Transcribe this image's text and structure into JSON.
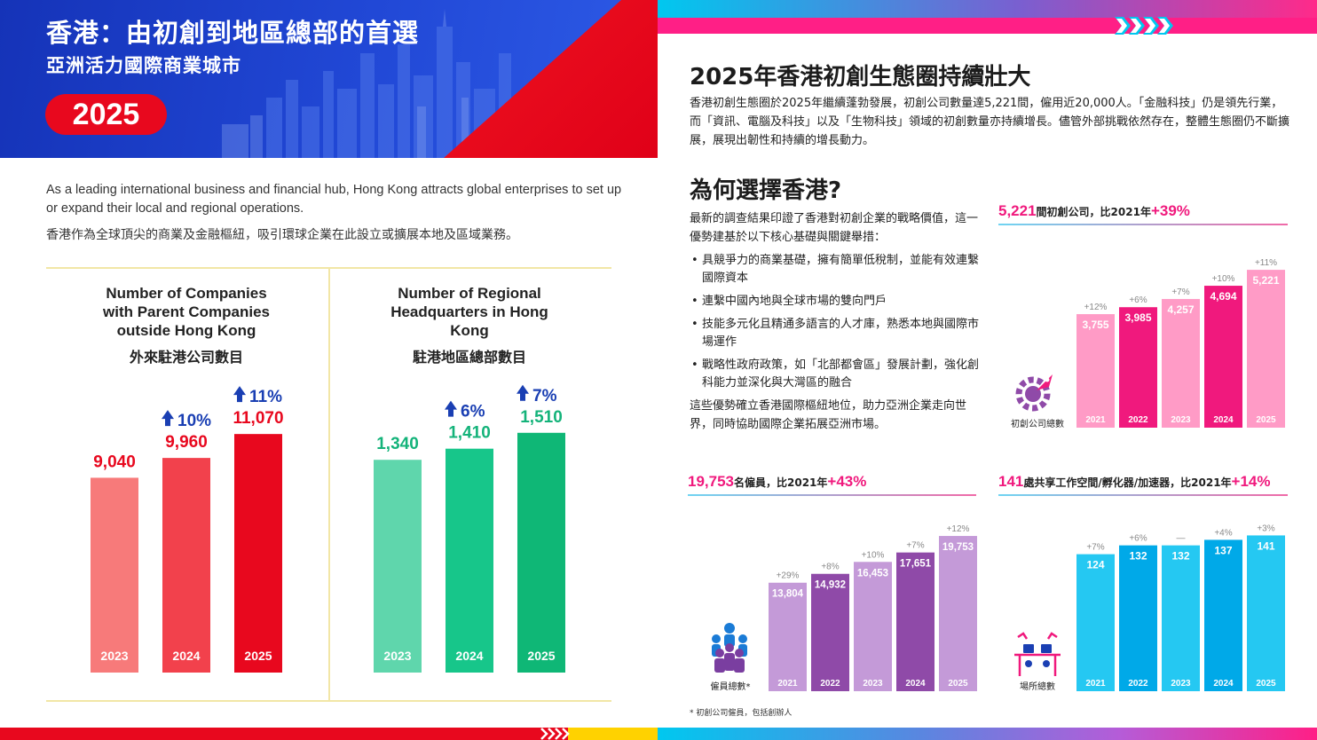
{
  "left": {
    "title": "香港：由初創到地區總部的首選",
    "subtitle": "亞洲活力國際商業城市",
    "year_badge": "2025",
    "intro_en": "As a leading international business and financial hub, Hong Kong attracts global enterprises to set up or expand their local and regional operations.",
    "intro_zh": "香港作為全球頂尖的商業及金融樞紐，吸引環球企業在此設立或擴展本地及區域業務。"
  },
  "right": {
    "heading": "2025年香港初創生態圈持續壯大",
    "paragraph": "香港初創生態圈於2025年繼續蓬勃發展，初創公司數量達5,221間，僱用近20,000人。「金融科技」仍是領先行業，而「資訊、電腦及科技」以及「生物科技」領域的初創數量亦持續增長。儘管外部挑戰依然存在，整體生態圈仍不斷擴展，展現出韌性和持續的增長動力。",
    "why_heading": "為何選擇香港?",
    "why_intro": "最新的調查結果印證了香港對初創企業的戰略價值，這一優勢建基於以下核心基礎與關鍵舉措：",
    "bullets": [
      "具競爭力的商業基礎，擁有簡單低稅制，並能有效連繫國際資本",
      "連繫中國內地與全球市場的雙向門戶",
      "技能多元化且精通多語言的人才庫，熟悉本地與國際市場運作",
      "戰略性政府政策，如「北部都會區」發展計劃，強化創科能力並深化與大灣區的融合"
    ],
    "why_outro": "這些優勢確立香港國際樞紐地位，助力亞洲企業走向世界，同時協助國際企業拓展亞洲市場。",
    "footnote": "* 初創公司僱員，包括創辦人"
  },
  "chart_data": [
    {
      "type": "bar",
      "title": "Number of Companies with Parent Companies outside Hong Kong",
      "title_zh": "外來駐港公司數目",
      "categories": [
        "2023",
        "2024",
        "2025"
      ],
      "values": [
        9040,
        9960,
        11070
      ],
      "value_labels": [
        "9,040",
        "9,960",
        "11,070"
      ],
      "growth_labels": [
        "",
        "10%",
        "11%"
      ],
      "colors": [
        "#f77a7a",
        "#f2414c",
        "#e8081e"
      ],
      "value_color": "#e8081e",
      "growth_color": "#1a3fb3",
      "ylim": [
        0,
        14000
      ]
    },
    {
      "type": "bar",
      "title": "Number of Regional Headquarters in Hong Kong",
      "title_zh": "駐港地區總部數目",
      "categories": [
        "2023",
        "2024",
        "2025"
      ],
      "values": [
        1340,
        1410,
        1510
      ],
      "value_labels": [
        "1,340",
        "1,410",
        "1,510"
      ],
      "growth_labels": [
        "",
        "6%",
        "7%"
      ],
      "colors": [
        "#5fd6ac",
        "#17c68a",
        "#0fb776"
      ],
      "value_color": "#14b37a",
      "growth_color": "#1a3fb3",
      "ylim": [
        0,
        1900
      ]
    },
    {
      "type": "bar",
      "stat_value": "5,221",
      "stat_text": "間初創公司，比2021年",
      "stat_change": "+39%",
      "axis_label": "初創公司總數",
      "categories": [
        "2021",
        "2022",
        "2023",
        "2024",
        "2025"
      ],
      "values": [
        3755,
        3985,
        4257,
        4694,
        5221
      ],
      "value_labels": [
        "3,755",
        "3,985",
        "4,257",
        "4,694",
        "5,221"
      ],
      "growth_labels": [
        "+12%",
        "+6%",
        "+7%",
        "+10%",
        "+11%"
      ],
      "colors": [
        "#ff9bc6",
        "#f0197d",
        "#ff9bc6",
        "#f0197d",
        "#ff9bc6"
      ],
      "icon": "rocket-gear-icon",
      "ylim": [
        0,
        5400
      ]
    },
    {
      "type": "bar",
      "stat_value": "19,753",
      "stat_text": "名僱員，比2021年",
      "stat_change": "+43%",
      "axis_label": "僱員總數*",
      "categories": [
        "2021",
        "2022",
        "2023",
        "2024",
        "2025"
      ],
      "values": [
        13804,
        14932,
        16453,
        17651,
        19753
      ],
      "value_labels": [
        "13,804",
        "14,932",
        "16,453",
        "17,651",
        "19,753"
      ],
      "growth_labels": [
        "+29%",
        "+8%",
        "+10%",
        "+7%",
        "+12%"
      ],
      "colors": [
        "#c49ad8",
        "#8f4aa8",
        "#c49ad8",
        "#8f4aa8",
        "#c49ad8"
      ],
      "icon": "people-icon",
      "ylim": [
        0,
        21000
      ]
    },
    {
      "type": "bar",
      "stat_value": "141",
      "stat_text": "處共享工作空間/孵化器/加速器，比2021年",
      "stat_change": "+14%",
      "axis_label": "場所總數",
      "categories": [
        "2021",
        "2022",
        "2023",
        "2024",
        "2025"
      ],
      "values": [
        124,
        132,
        132,
        137,
        141
      ],
      "value_labels": [
        "124",
        "132",
        "132",
        "137",
        "141"
      ],
      "growth_labels": [
        "+7%",
        "+6%",
        "—",
        "+4%",
        "+3%"
      ],
      "colors": [
        "#25c8f2",
        "#00a9e8",
        "#25c8f2",
        "#00a9e8",
        "#25c8f2"
      ],
      "icon": "workspace-icon",
      "ylim": [
        0,
        155
      ]
    }
  ]
}
